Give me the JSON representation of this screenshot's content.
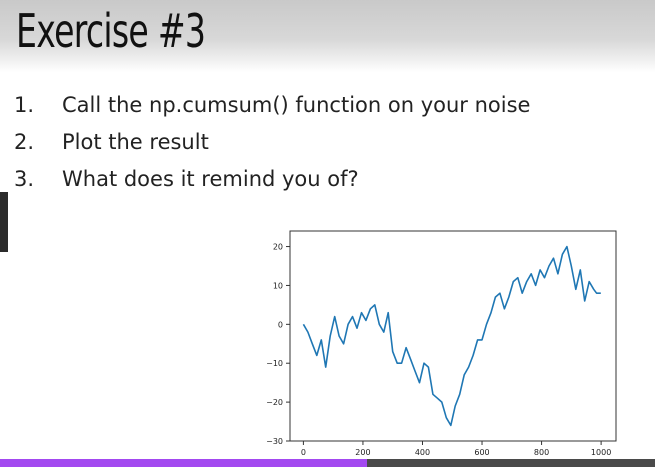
{
  "slide": {
    "title": "Exercise #3",
    "steps": [
      {
        "num": "1.",
        "text": "Call the np.cumsum() function on your noise"
      },
      {
        "num": "2.",
        "text": "Plot the result"
      },
      {
        "num": "3.",
        "text": "What does it remind you of?"
      }
    ]
  },
  "progress": {
    "fraction": 0.56,
    "color": "#a349f0"
  },
  "chart_data": {
    "type": "line",
    "title": "",
    "xlabel": "",
    "ylabel": "",
    "xlim": [
      -45,
      1050
    ],
    "ylim": [
      -30,
      24
    ],
    "xticks": [
      0,
      200,
      400,
      600,
      800,
      1000
    ],
    "xtick_labels": [
      "0",
      "200",
      "400",
      "600",
      "800",
      "1000"
    ],
    "yticks": [
      -30,
      -20,
      -10,
      0,
      10,
      20
    ],
    "ytick_labels": [
      "−30",
      "−20",
      "−10",
      "0",
      "10",
      "20"
    ],
    "grid": false,
    "line_color": "#1f77b4",
    "series": [
      {
        "x": [
          0,
          15,
          30,
          45,
          60,
          75,
          90,
          105,
          120,
          135,
          150,
          165,
          180,
          195,
          210,
          225,
          240,
          255,
          270,
          285,
          300,
          315,
          330,
          345,
          360,
          375,
          390,
          405,
          420,
          435,
          450,
          465,
          480,
          495,
          510,
          525,
          540,
          555,
          570,
          585,
          600,
          615,
          630,
          645,
          660,
          675,
          690,
          705,
          720,
          735,
          750,
          765,
          780,
          795,
          810,
          825,
          840,
          855,
          870,
          885,
          900,
          915,
          930,
          945,
          960,
          975,
          985,
          999
        ],
        "values": [
          0,
          -2,
          -5,
          -8,
          -4,
          -11,
          -3,
          2,
          -3,
          -5,
          0,
          2,
          -1,
          3,
          1,
          4,
          5,
          0,
          -2,
          3,
          -7,
          -10,
          -10,
          -6,
          -9,
          -12,
          -15,
          -10,
          -11,
          -18,
          -19,
          -20,
          -24,
          -26,
          -21,
          -18,
          -13,
          -11,
          -8,
          -4,
          -4,
          0,
          3,
          7,
          8,
          4,
          7,
          11,
          12,
          8,
          11,
          13,
          10,
          14,
          12,
          15,
          17,
          13,
          18,
          20,
          15,
          9,
          14,
          6,
          11,
          9,
          8,
          8
        ]
      }
    ]
  }
}
